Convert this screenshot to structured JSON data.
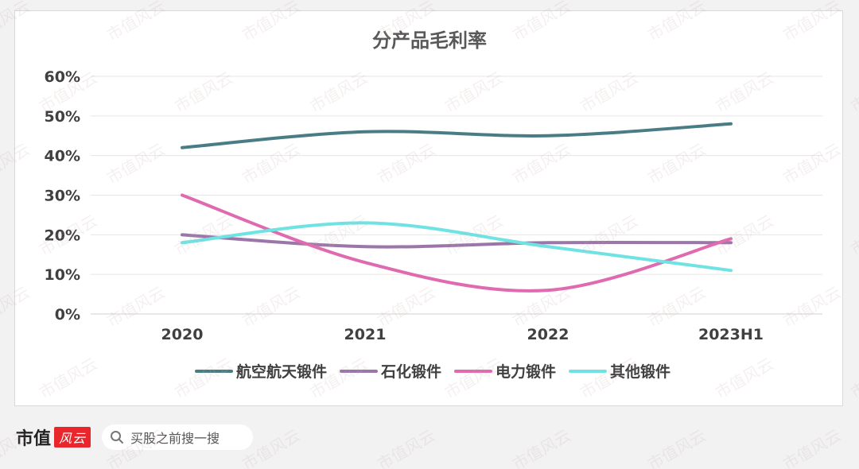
{
  "chart_data": {
    "type": "line",
    "title": "分产品毛利率",
    "categories": [
      "2020",
      "2021",
      "2022",
      "2023H1"
    ],
    "y_ticks": [
      "0%",
      "10%",
      "20%",
      "30%",
      "40%",
      "50%",
      "60%"
    ],
    "ylim": [
      0,
      60
    ],
    "grid": true,
    "smooth": true,
    "legend_position": "bottom",
    "series": [
      {
        "name": "航空航天锻件",
        "color": "#4a7c86",
        "values": [
          42,
          46,
          45,
          48
        ]
      },
      {
        "name": "石化锻件",
        "color": "#9b76a8",
        "values": [
          20,
          17,
          18,
          18
        ]
      },
      {
        "name": "电力锻件",
        "color": "#e06aaf",
        "values": [
          30,
          13,
          6,
          19
        ]
      },
      {
        "name": "其他锻件",
        "color": "#6fe3e3",
        "values": [
          18,
          23,
          17,
          11
        ]
      }
    ]
  },
  "footer": {
    "brand": "市值",
    "brand_badge": "风云",
    "search_placeholder": "买股之前搜一搜"
  },
  "watermark_text": "市值风云"
}
